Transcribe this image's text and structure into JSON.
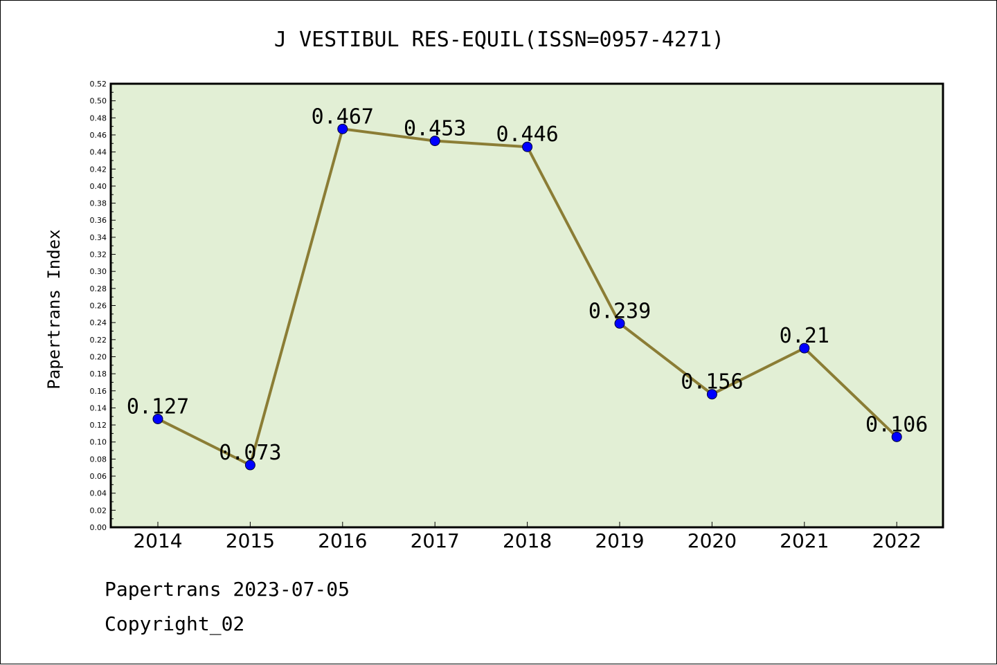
{
  "chart_data": {
    "type": "line",
    "title": "J VESTIBUL RES-EQUIL(ISSN=0957-4271)",
    "xlabel": "",
    "ylabel": "Papertrans Index",
    "categories": [
      "2014",
      "2015",
      "2016",
      "2017",
      "2018",
      "2019",
      "2020",
      "2021",
      "2022"
    ],
    "values": [
      0.127,
      0.073,
      0.467,
      0.453,
      0.446,
      0.239,
      0.156,
      0.21,
      0.106
    ],
    "data_labels": [
      "0.127",
      "0.073",
      "0.467",
      "0.453",
      "0.446",
      "0.239",
      "0.156",
      "0.21",
      "0.106"
    ],
    "ylim": [
      0,
      0.52
    ],
    "ytick_step": 0.02,
    "grid": false,
    "legend": "none",
    "colors": {
      "plot_background": "#e2efd5",
      "line": "#8b7d35",
      "marker": "#0000ff",
      "axes": "#000000"
    }
  },
  "footer": {
    "line1": "Papertrans 2023-07-05",
    "line2": "Copyright_02"
  }
}
